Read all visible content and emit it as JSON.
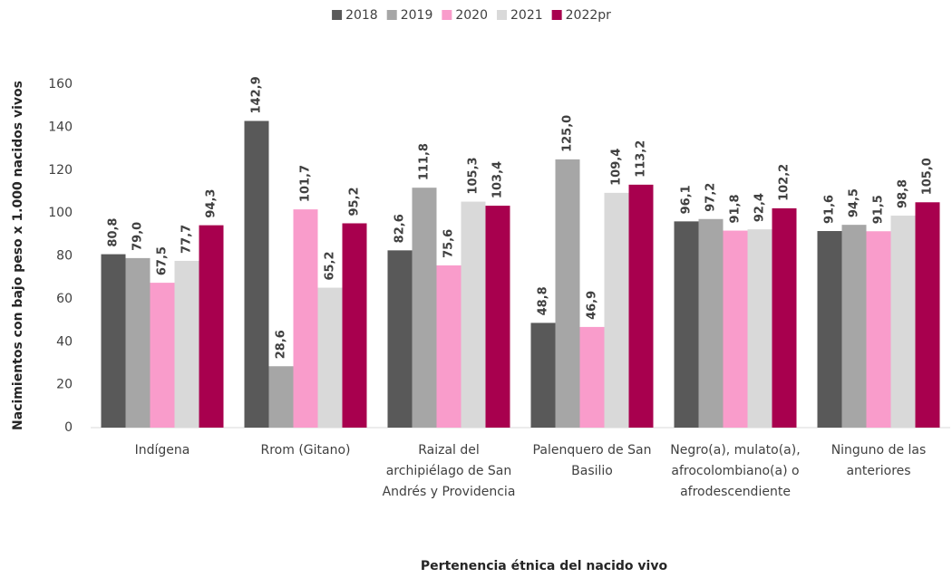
{
  "chart_data": {
    "type": "bar",
    "x_label": "Pertenencia étnica del nacido vivo",
    "y_label": "Nacimientos con bajo peso x 1.000 nacidos vivos",
    "categories": [
      "Indígena",
      "Rrom (Gitano)",
      "Raizal del archipiélago de San Andrés y Providencia",
      "Palenquero de San Basilio",
      "Negro(a), mulato(a), afrocolombiano(a) o afrodescendiente",
      "Ninguno de las anteriores"
    ],
    "series": [
      {
        "name": "2018",
        "color": "#595959",
        "values": [
          80.8,
          142.9,
          82.6,
          48.8,
          96.1,
          91.6
        ],
        "value_labels": [
          "80,8",
          "142,9",
          "82,6",
          "48,8",
          "96,1",
          "91,6"
        ]
      },
      {
        "name": "2019",
        "color": "#a6a6a6",
        "values": [
          79.0,
          28.6,
          111.8,
          125.0,
          97.2,
          94.5
        ],
        "value_labels": [
          "79,0",
          "28,6",
          "111,8",
          "125,0",
          "97,2",
          "94,5"
        ]
      },
      {
        "name": "2020",
        "color": "#f99ccb",
        "values": [
          67.5,
          101.7,
          75.6,
          46.9,
          91.8,
          91.5
        ],
        "value_labels": [
          "67,5",
          "101,7",
          "75,6",
          "46,9",
          "91,8",
          "91,5"
        ]
      },
      {
        "name": "2021",
        "color": "#d9d9d9",
        "values": [
          77.7,
          65.2,
          105.3,
          109.4,
          92.4,
          98.8
        ],
        "value_labels": [
          "77,7",
          "65,2",
          "105,3",
          "109,4",
          "92,4",
          "98,8"
        ]
      },
      {
        "name": "2022pr",
        "color": "#a8004e",
        "values": [
          94.3,
          95.2,
          103.4,
          113.2,
          102.2,
          105.0
        ],
        "value_labels": [
          "94,3",
          "95,2",
          "103,4",
          "113,2",
          "102,2",
          "105,0"
        ]
      }
    ],
    "ylim": [
      0,
      160
    ],
    "yticks": [
      0,
      20,
      40,
      60,
      80,
      100,
      120,
      140,
      160
    ],
    "grid": false,
    "legend": "top"
  }
}
